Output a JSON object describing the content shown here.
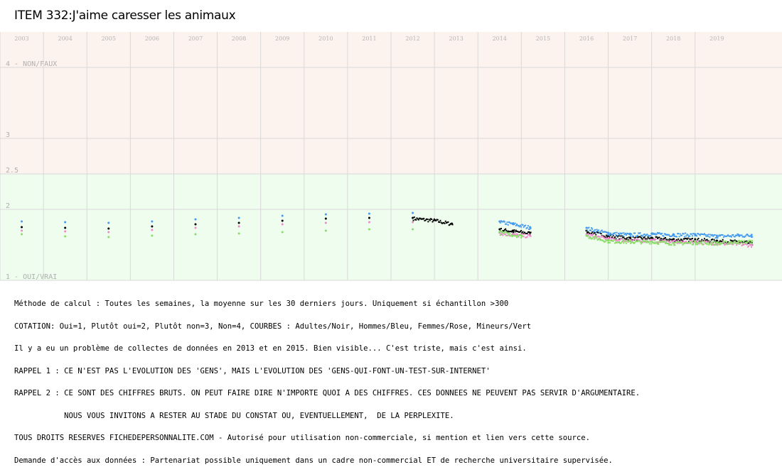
{
  "title": "ITEM 332:J'aime caresser les animaux",
  "notes": [
    "Méthode de calcul : Toutes les semaines, la moyenne sur les 30 derniers jours. Uniquement si échantillon >300",
    "COTATION: Oui=1, Plutôt oui=2, Plutôt non=3, Non=4, COURBES : Adultes/Noir, Hommes/Bleu, Femmes/Rose, Mineurs/Vert",
    "Il y a eu un problème de collectes de données en 2013 et en 2015. Bien visible... C'est triste, mais c'est ainsi.",
    "RAPPEL 1 : CE N'EST PAS L'EVOLUTION DES 'GENS', MAIS L'EVOLUTION DES 'GENS-QUI-FONT-UN-TEST-SUR-INTERNET'",
    "RAPPEL 2 : CE SONT DES CHIFFRES BRUTS. ON PEUT FAIRE DIRE N'IMPORTE QUOI A DES CHIFFRES. CES DONNEES NE PEUVENT PAS SERVIR D'ARGUMENTAIRE.",
    "           NOUS VOUS INVITONS A RESTER AU STADE DU CONSTAT OU, EVENTUELLEMENT,  DE LA PERPLEXITE.",
    "TOUS DROITS RESERVES FICHEDEPERSONNALITE.COM - Autorisé pour utilisation non-commerciale, si mention et lien vers cette source.",
    "Demande d'accès aux données : Partenariat possible uniquement dans un cadre non-commercial ET de recherche universitaire supervisée."
  ],
  "chart_data": {
    "type": "scatter",
    "title": "ITEM 332:J'aime caresser les animaux",
    "x_unit": "year",
    "xlim": [
      2002.5,
      2020.5
    ],
    "ylim": [
      1,
      4.5
    ],
    "x_ticks": [
      "2003",
      "2004",
      "2005",
      "2006",
      "2007",
      "2008",
      "2009",
      "2010",
      "2011",
      "2012",
      "2013",
      "2014",
      "2015",
      "2016",
      "2017",
      "2018",
      "2019"
    ],
    "y_ticks": [
      {
        "value": 4,
        "label": "4 - NON/FAUX"
      },
      {
        "value": 3,
        "label": "3"
      },
      {
        "value": 2.5,
        "label": "2.5"
      },
      {
        "value": 2,
        "label": "2"
      },
      {
        "value": 1,
        "label": "1 - OUI/VRAI"
      }
    ],
    "bands": [
      {
        "from": 2.5,
        "to": 4.5,
        "color": "#fdf3ee"
      },
      {
        "from": 1,
        "to": 2.5,
        "color": "#eefdee"
      }
    ],
    "grid": true,
    "series": [
      {
        "name": "Adultes",
        "color": "#000000",
        "points": [
          [
            2003.0,
            1.75
          ],
          [
            2004.0,
            1.74
          ],
          [
            2005.0,
            1.73
          ],
          [
            2006.0,
            1.76
          ],
          [
            2007.0,
            1.79
          ],
          [
            2008.0,
            1.81
          ],
          [
            2009.0,
            1.84
          ],
          [
            2010.0,
            1.87
          ],
          [
            2011.0,
            1.88
          ],
          [
            2012.0,
            1.88
          ],
          [
            2012.5,
            1.85
          ],
          [
            2012.9,
            1.8
          ],
          [
            2014.0,
            1.72
          ],
          [
            2014.3,
            1.7
          ],
          [
            2014.7,
            1.67
          ],
          [
            2016.0,
            1.7
          ],
          [
            2016.5,
            1.63
          ],
          [
            2017.0,
            1.6
          ],
          [
            2017.5,
            1.6
          ],
          [
            2018.0,
            1.58
          ],
          [
            2018.5,
            1.58
          ],
          [
            2019.0,
            1.56
          ],
          [
            2019.5,
            1.55
          ],
          [
            2019.8,
            1.53
          ]
        ]
      },
      {
        "name": "Hommes",
        "color": "#4499ee",
        "points": [
          [
            2003.0,
            1.83
          ],
          [
            2004.0,
            1.82
          ],
          [
            2005.0,
            1.81
          ],
          [
            2006.0,
            1.83
          ],
          [
            2007.0,
            1.86
          ],
          [
            2008.0,
            1.88
          ],
          [
            2009.0,
            1.91
          ],
          [
            2010.0,
            1.93
          ],
          [
            2011.0,
            1.94
          ],
          [
            2012.0,
            1.95
          ],
          [
            2014.0,
            1.83
          ],
          [
            2014.3,
            1.8
          ],
          [
            2014.7,
            1.75
          ],
          [
            2016.0,
            1.74
          ],
          [
            2016.5,
            1.67
          ],
          [
            2017.0,
            1.65
          ],
          [
            2017.5,
            1.66
          ],
          [
            2018.0,
            1.65
          ],
          [
            2018.5,
            1.65
          ],
          [
            2019.0,
            1.63
          ],
          [
            2019.5,
            1.64
          ],
          [
            2019.8,
            1.64
          ]
        ]
      },
      {
        "name": "Femmes",
        "color": "#ee88cc",
        "points": [
          [
            2003.0,
            1.7
          ],
          [
            2004.0,
            1.69
          ],
          [
            2005.0,
            1.68
          ],
          [
            2006.0,
            1.71
          ],
          [
            2007.0,
            1.74
          ],
          [
            2008.0,
            1.76
          ],
          [
            2009.0,
            1.79
          ],
          [
            2010.0,
            1.81
          ],
          [
            2011.0,
            1.82
          ],
          [
            2012.0,
            1.82
          ],
          [
            2014.0,
            1.67
          ],
          [
            2014.3,
            1.65
          ],
          [
            2014.7,
            1.63
          ],
          [
            2016.0,
            1.65
          ],
          [
            2016.5,
            1.59
          ],
          [
            2017.0,
            1.57
          ],
          [
            2017.5,
            1.57
          ],
          [
            2018.0,
            1.55
          ],
          [
            2018.5,
            1.55
          ],
          [
            2019.0,
            1.53
          ],
          [
            2019.5,
            1.52
          ],
          [
            2019.8,
            1.5
          ]
        ]
      },
      {
        "name": "Mineurs",
        "color": "#88dd66",
        "points": [
          [
            2003.0,
            1.65
          ],
          [
            2004.0,
            1.62
          ],
          [
            2005.0,
            1.61
          ],
          [
            2006.0,
            1.63
          ],
          [
            2007.0,
            1.65
          ],
          [
            2008.0,
            1.66
          ],
          [
            2009.0,
            1.68
          ],
          [
            2010.0,
            1.7
          ],
          [
            2011.0,
            1.72
          ],
          [
            2012.0,
            1.72
          ],
          [
            2014.0,
            1.68
          ],
          [
            2014.5,
            1.63
          ],
          [
            2016.0,
            1.63
          ],
          [
            2016.5,
            1.56
          ],
          [
            2017.0,
            1.55
          ],
          [
            2017.5,
            1.55
          ],
          [
            2018.0,
            1.53
          ],
          [
            2018.5,
            1.54
          ],
          [
            2019.0,
            1.53
          ],
          [
            2019.5,
            1.55
          ],
          [
            2019.8,
            1.55
          ]
        ]
      }
    ]
  }
}
